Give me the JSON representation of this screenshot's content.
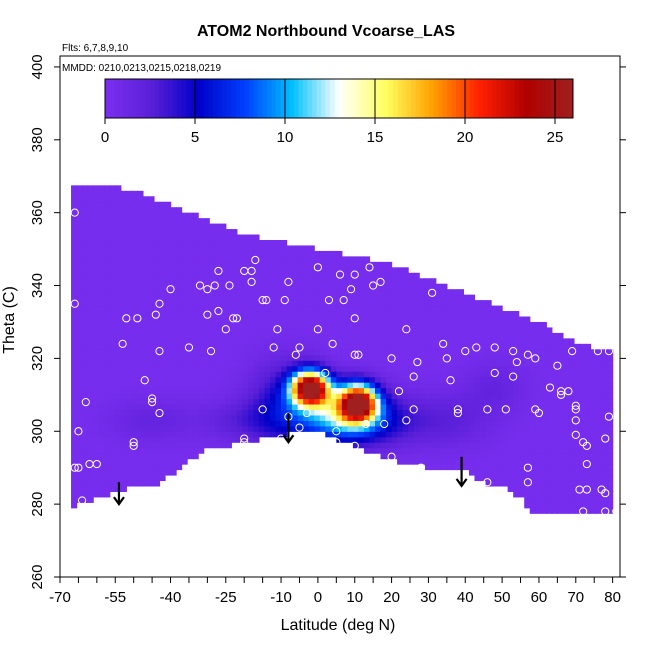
{
  "chart_data": {
    "type": "heatmap",
    "title": "ATOM2 Northbound Vcoarse_LAS",
    "annotations": [
      "Flts: 6,7,8,9,10",
      "MMDD: 0210,0213,0215,0218,0219"
    ],
    "xlabel": "Latitude (deg N)",
    "ylabel": "Theta (C)",
    "xlim": [
      -70,
      82
    ],
    "ylim": [
      260,
      403
    ],
    "x_ticks": [
      -70,
      -65,
      -60,
      -55,
      -50,
      -45,
      -40,
      -35,
      -30,
      -25,
      -20,
      -15,
      -10,
      -5,
      0,
      5,
      10,
      15,
      20,
      25,
      30,
      35,
      40,
      45,
      50,
      55,
      60,
      65,
      70,
      75,
      80
    ],
    "x_tick_labels": [
      "-70",
      "-55",
      "-40",
      "-25",
      "-10",
      "0",
      "10",
      "20",
      "30",
      "40",
      "50",
      "60",
      "70",
      "80"
    ],
    "x_tick_label_values": [
      -70,
      -55,
      -40,
      -25,
      -10,
      0,
      10,
      20,
      30,
      40,
      50,
      60,
      70,
      80
    ],
    "y_ticks": [
      260,
      280,
      300,
      320,
      340,
      360,
      380,
      400
    ],
    "y_tick_labels": [
      "260",
      "280",
      "300",
      "320",
      "340",
      "360",
      "380",
      "400"
    ],
    "colorbar": {
      "range": [
        0,
        26
      ],
      "ticks": [
        0,
        5,
        10,
        15,
        20,
        25
      ],
      "tick_labels": [
        "0",
        "5",
        "10",
        "15",
        "20",
        "25"
      ],
      "colors": [
        "#7b2ff0",
        "#5a1fd8",
        "#0000c8",
        "#0040ff",
        "#00c0ff",
        "#ffffff",
        "#ffff60",
        "#ffa000",
        "#ff2000",
        "#b00000",
        "#a02020"
      ]
    },
    "background_color": "#7b2ff0",
    "domain_top": [
      [
        -67,
        368
      ],
      [
        -58,
        368
      ],
      [
        -50,
        366
      ],
      [
        -40,
        362
      ],
      [
        -30,
        358
      ],
      [
        -20,
        354
      ],
      [
        -10,
        352
      ],
      [
        0,
        350
      ],
      [
        10,
        348
      ],
      [
        20,
        346
      ],
      [
        30,
        342
      ],
      [
        40,
        338
      ],
      [
        50,
        334
      ],
      [
        60,
        330
      ],
      [
        70,
        324
      ],
      [
        80,
        322
      ]
    ],
    "domain_bottom": [
      [
        -67,
        279
      ],
      [
        -60,
        282
      ],
      [
        -55,
        283
      ],
      [
        -50,
        285
      ],
      [
        -45,
        285
      ],
      [
        -40,
        288
      ],
      [
        -35,
        292
      ],
      [
        -30,
        295
      ],
      [
        -25,
        296
      ],
      [
        -20,
        297
      ],
      [
        -15,
        298
      ],
      [
        -10,
        299
      ],
      [
        -5,
        300
      ],
      [
        0,
        300
      ],
      [
        5,
        298
      ],
      [
        10,
        296
      ],
      [
        15,
        294
      ],
      [
        20,
        292
      ],
      [
        25,
        291
      ],
      [
        30,
        290
      ],
      [
        35,
        289
      ],
      [
        40,
        289
      ],
      [
        45,
        286
      ],
      [
        50,
        285
      ],
      [
        55,
        282
      ],
      [
        58,
        277
      ],
      [
        65,
        277
      ],
      [
        70,
        277
      ],
      [
        75,
        277
      ],
      [
        80,
        277
      ]
    ],
    "hotspots": [
      {
        "lat": -2,
        "theta": 312,
        "value": 26,
        "lat_sigma": 3.5,
        "theta_sigma": 3.2
      },
      {
        "lat": 11,
        "theta": 308,
        "value": 23,
        "lat_sigma": 3.5,
        "theta_sigma": 3.5
      },
      {
        "lat": 6,
        "theta": 305,
        "value": 10,
        "lat_sigma": 7,
        "theta_sigma": 5
      },
      {
        "lat": -8,
        "theta": 307,
        "value": 5,
        "lat_sigma": 7,
        "theta_sigma": 8
      },
      {
        "lat": 16,
        "theta": 303,
        "value": 4,
        "lat_sigma": 8,
        "theta_sigma": 5
      },
      {
        "lat": -20,
        "theta": 303,
        "value": 2,
        "lat_sigma": 8,
        "theta_sigma": 4
      },
      {
        "lat": 35,
        "theta": 303,
        "value": 2,
        "lat_sigma": 8,
        "theta_sigma": 5
      },
      {
        "lat": 48,
        "theta": 312,
        "value": 1.5,
        "lat_sigma": 6,
        "theta_sigma": 5
      },
      {
        "lat": -45,
        "theta": 303,
        "value": 1.5,
        "lat_sigma": 8,
        "theta_sigma": 4
      }
    ],
    "observation_points": [
      [
        -66,
        335
      ],
      [
        -66,
        360
      ],
      [
        -65,
        300
      ],
      [
        -66,
        290
      ],
      [
        -63,
        308
      ],
      [
        -62,
        291
      ],
      [
        -64,
        281
      ],
      [
        -60,
        291
      ],
      [
        -52,
        331
      ],
      [
        -49,
        331
      ],
      [
        -53,
        324
      ],
      [
        -47,
        314
      ],
      [
        -44,
        332
      ],
      [
        -43,
        335
      ],
      [
        -43,
        322
      ],
      [
        -45,
        309
      ],
      [
        -43,
        305
      ],
      [
        -40,
        339
      ],
      [
        -32,
        340
      ],
      [
        -30,
        339
      ],
      [
        -28,
        340
      ],
      [
        -24,
        340
      ],
      [
        -27,
        344
      ],
      [
        -23,
        331
      ],
      [
        -25,
        328
      ],
      [
        -29,
        322
      ],
      [
        -17,
        347
      ],
      [
        -18,
        344
      ],
      [
        -20,
        344
      ],
      [
        -15,
        336
      ],
      [
        -14,
        336
      ],
      [
        -9,
        336
      ],
      [
        -8,
        341
      ],
      [
        -11,
        328
      ],
      [
        -12,
        323
      ],
      [
        -6,
        321
      ],
      [
        -5,
        323
      ],
      [
        0,
        345
      ],
      [
        3,
        336
      ],
      [
        6,
        343
      ],
      [
        7,
        336
      ],
      [
        9,
        339
      ],
      [
        10,
        343
      ],
      [
        10,
        331
      ],
      [
        10,
        321
      ],
      [
        11,
        321
      ],
      [
        14,
        345
      ],
      [
        15,
        340
      ],
      [
        17,
        341
      ],
      [
        20,
        320
      ],
      [
        24,
        328
      ],
      [
        26,
        315
      ],
      [
        27,
        319
      ],
      [
        22,
        311
      ],
      [
        26,
        306
      ],
      [
        31,
        338
      ],
      [
        34,
        324
      ],
      [
        35,
        320
      ],
      [
        36,
        314
      ],
      [
        38,
        305
      ],
      [
        38,
        306
      ],
      [
        43,
        323
      ],
      [
        40,
        322
      ],
      [
        48,
        323
      ],
      [
        46,
        306
      ],
      [
        48,
        316
      ],
      [
        51,
        306
      ],
      [
        53,
        322
      ],
      [
        54,
        319
      ],
      [
        53,
        315
      ],
      [
        57,
        321
      ],
      [
        59,
        306
      ],
      [
        60,
        305
      ],
      [
        57,
        286
      ],
      [
        59,
        320
      ],
      [
        65,
        318
      ],
      [
        66,
        311
      ],
      [
        68,
        311
      ],
      [
        66,
        310
      ],
      [
        70,
        307
      ],
      [
        70,
        306
      ],
      [
        72,
        297
      ],
      [
        69,
        322
      ],
      [
        63,
        312
      ],
      [
        76,
        322
      ],
      [
        79,
        322
      ],
      [
        79,
        304
      ],
      [
        78,
        298
      ],
      [
        70,
        303
      ],
      [
        70,
        299
      ],
      [
        73,
        291
      ],
      [
        73,
        296
      ],
      [
        71,
        284
      ],
      [
        73,
        284
      ],
      [
        77,
        284
      ],
      [
        78,
        283
      ],
      [
        78,
        278
      ],
      [
        72,
        278
      ],
      [
        81,
        278
      ],
      [
        57,
        290
      ],
      [
        46,
        286
      ],
      [
        28,
        290
      ],
      [
        20,
        293
      ],
      [
        5,
        297
      ],
      [
        -3,
        305
      ],
      [
        2,
        316
      ],
      [
        0,
        328
      ],
      [
        4,
        324
      ],
      [
        -15,
        306
      ],
      [
        -8,
        304
      ],
      [
        -5,
        301
      ],
      [
        -2,
        296
      ],
      [
        5,
        300
      ],
      [
        10,
        296
      ],
      [
        13,
        302
      ],
      [
        18,
        302
      ],
      [
        24,
        303
      ],
      [
        -10,
        298
      ],
      [
        -20,
        298
      ],
      [
        -20,
        297
      ],
      [
        -50,
        296
      ],
      [
        -50,
        297
      ],
      [
        -68,
        278
      ],
      [
        -67,
        277
      ],
      [
        -65,
        290
      ],
      [
        -45,
        308
      ],
      [
        -35,
        323
      ],
      [
        -30,
        332
      ],
      [
        -27,
        333
      ],
      [
        -22,
        331
      ],
      [
        -18,
        341
      ]
    ],
    "arrows": [
      {
        "lat": -54,
        "theta_top": 286,
        "theta_bottom": 280
      },
      {
        "lat": -8,
        "theta_top": 305,
        "theta_bottom": 297
      },
      {
        "lat": 39,
        "theta_top": 293,
        "theta_bottom": 285
      }
    ]
  }
}
